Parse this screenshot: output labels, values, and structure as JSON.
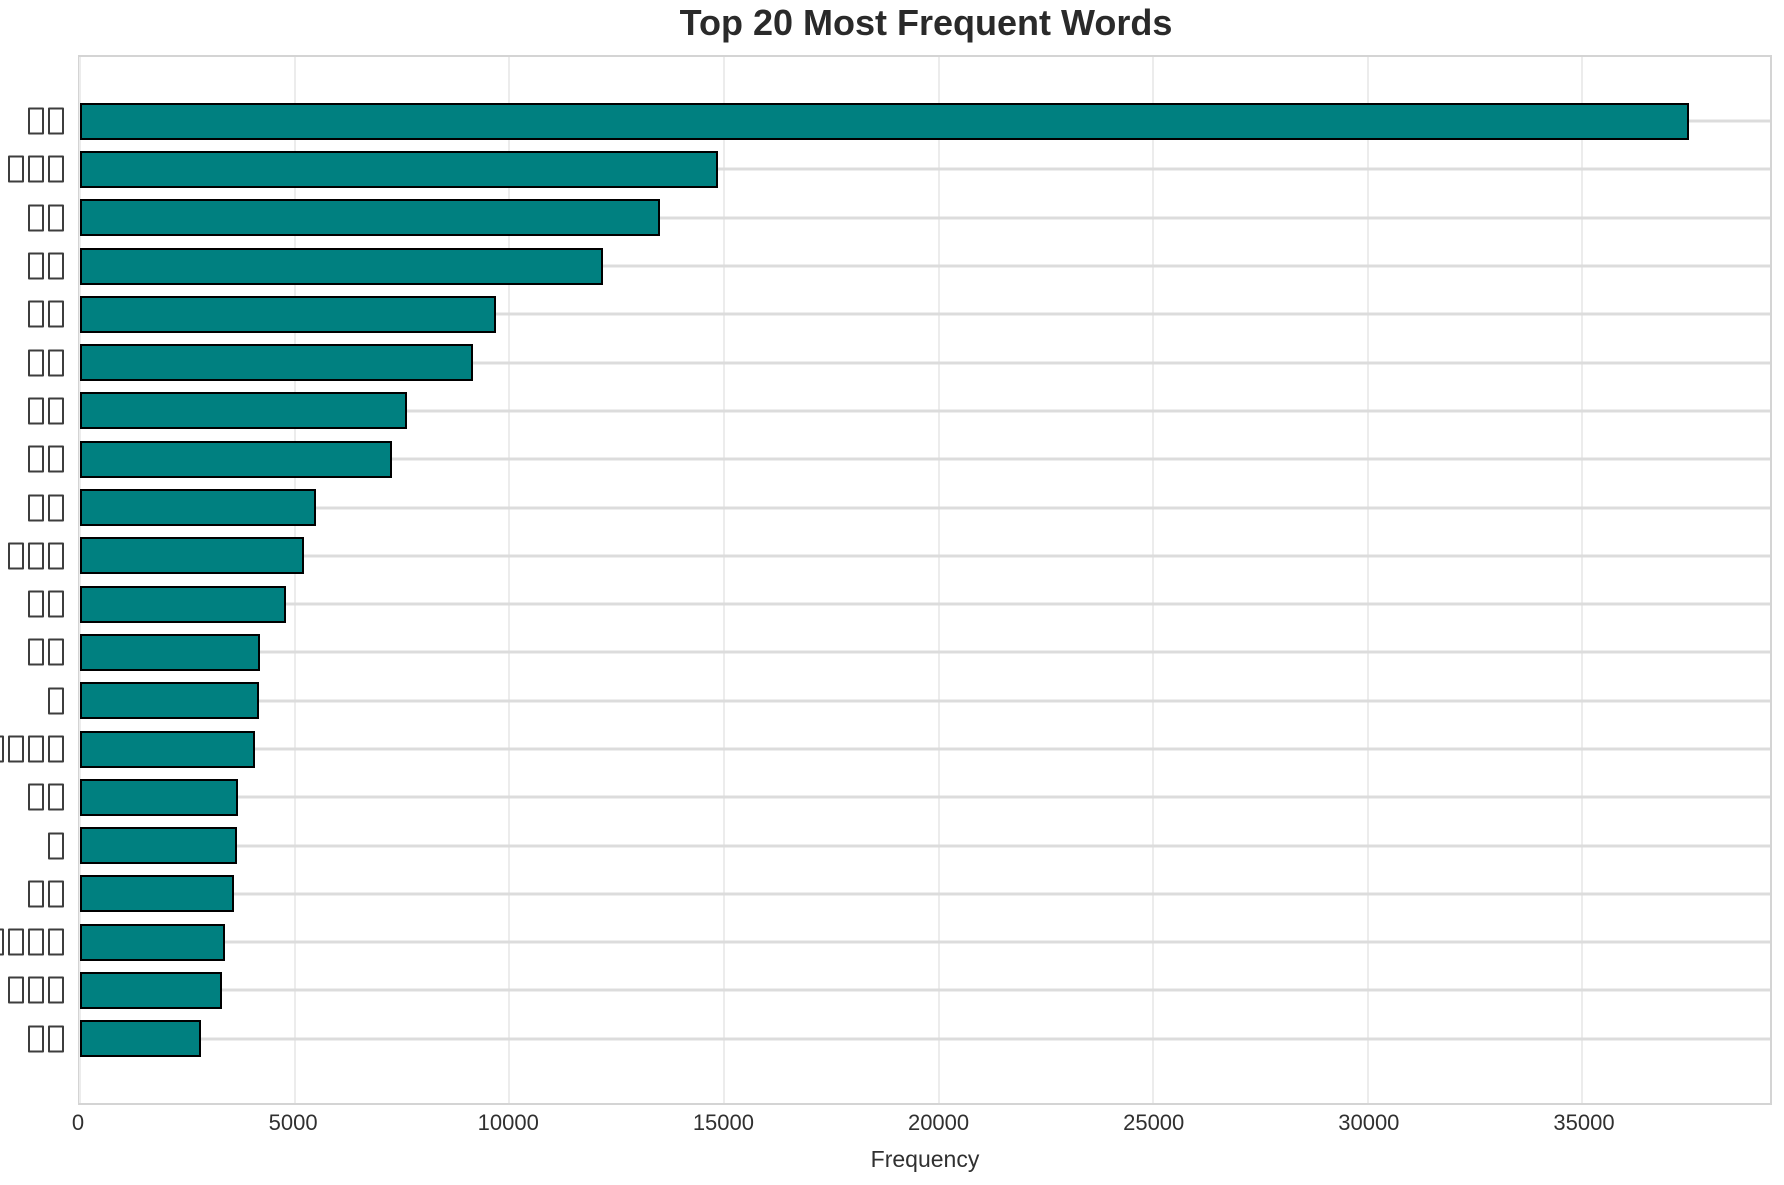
{
  "chart_data": {
    "type": "bar",
    "orientation": "horizontal",
    "title": "Top 20 Most Frequent Words",
    "xlabel": "Frequency",
    "ylabel": "",
    "categories": [
      "□□",
      "□□□",
      "□□",
      "□□",
      "□□",
      "□□",
      "□□",
      "□□",
      "□□",
      "□□□",
      "□□",
      "□□",
      "□",
      "□□□□",
      "□□",
      "□",
      "□□",
      "□□□□",
      "□□□",
      "□□"
    ],
    "values": [
      37480,
      14870,
      13510,
      12180,
      9700,
      9160,
      7620,
      7260,
      5490,
      5220,
      4810,
      4190,
      4160,
      4080,
      3670,
      3660,
      3590,
      3370,
      3300,
      2810
    ],
    "xticks": [
      0,
      5000,
      10000,
      15000,
      20000,
      25000,
      30000,
      35000
    ],
    "xtick_labels": [
      "0",
      "5000",
      "10000",
      "15000",
      "20000",
      "25000",
      "30000",
      "35000"
    ],
    "xlim": [
      0,
      39370
    ],
    "grid": true,
    "legend": false,
    "bar_color": "#008080",
    "bar_edge_color": "#000000",
    "grid_color_horizontal": "#dcdcdc",
    "grid_color_vertical": "#ececec",
    "spine_color": "#d4d4d4",
    "text_color": "#303030",
    "category_labels_rendered_as": "missing-glyph tofu boxes"
  }
}
